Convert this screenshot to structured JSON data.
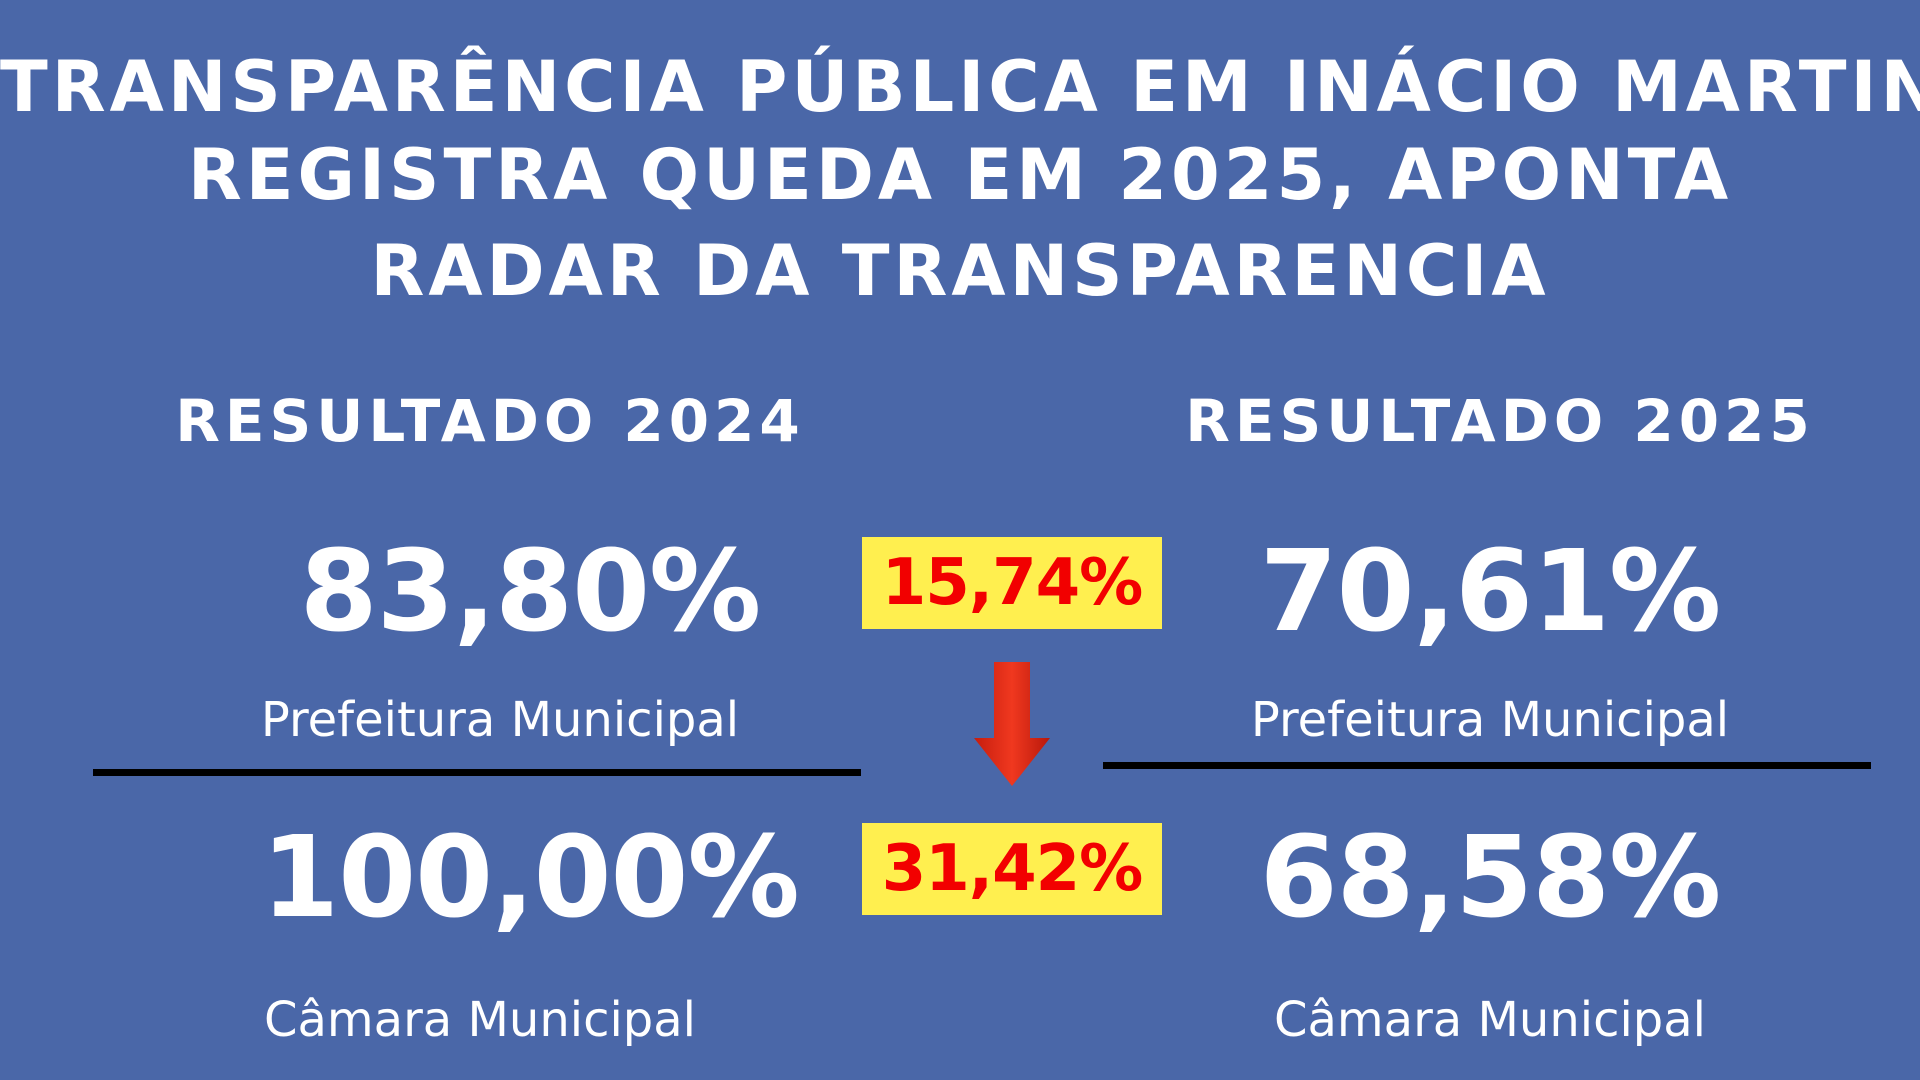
{
  "title": {
    "lines": [
      "TRANSPARÊNCIA PÚBLICA EM INÁCIO MARTINS",
      "REGISTRA QUEDA EM 2025, APONTA",
      "RADAR DA TRANSPARENCIA"
    ]
  },
  "left": {
    "heading": "RESULTADO 2024",
    "prefeitura_value": "83,80%",
    "prefeitura_label": "Prefeitura Municipal",
    "camara_value": "100,00%",
    "camara_label": "Câmara Municipal"
  },
  "right": {
    "heading": "RESULTADO 2025",
    "prefeitura_value": "70,61%",
    "prefeitura_label": "Prefeitura Municipal",
    "camara_value": "68,58%",
    "camara_label": "Câmara Municipal"
  },
  "center": {
    "prefeitura_drop": "15,74%",
    "camara_drop": "31,42%",
    "arrow_icon": "arrow-down-icon"
  },
  "colors": {
    "background": "#4a67a8",
    "badge_background": "#ffef4f",
    "badge_text": "#f20000",
    "arrow": "#e8321c",
    "divider": "#000000"
  }
}
